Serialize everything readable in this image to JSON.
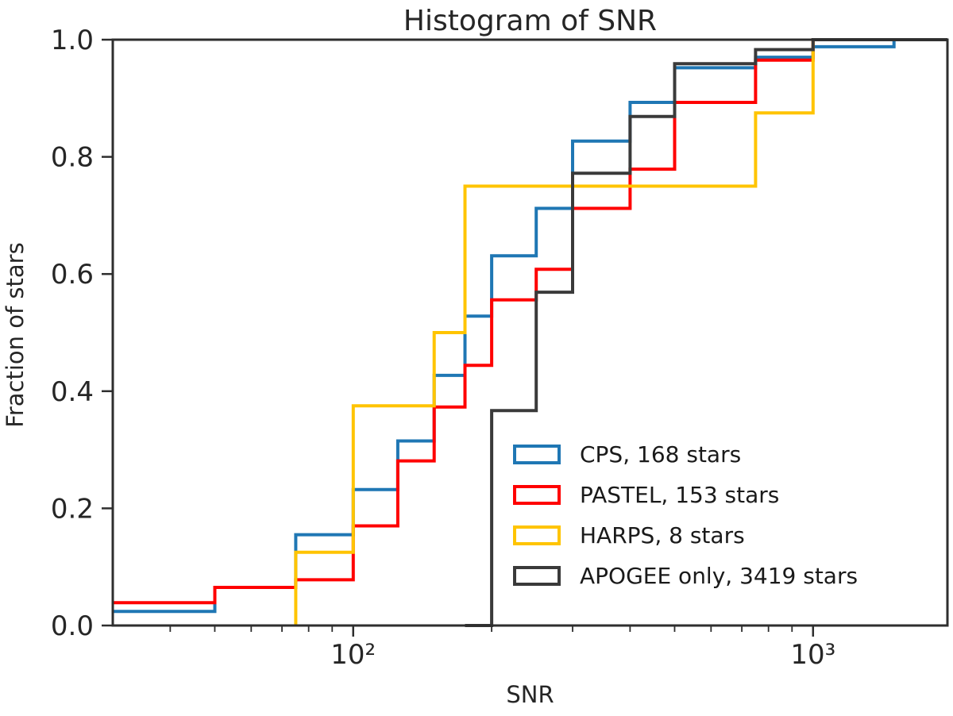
{
  "chart_data": {
    "type": "step_cumulative_histogram",
    "title": "Histogram of SNR",
    "xlabel": "SNR",
    "ylabel": "Fraction of stars",
    "xscale": "log",
    "xlim": [
      30,
      1960
    ],
    "ylim": [
      0.0,
      1.0
    ],
    "grid": false,
    "legend_position": "lower right, no frame",
    "x_major_ticks": [
      {
        "value": 100,
        "label": "10²"
      },
      {
        "value": 1000,
        "label": "10³"
      }
    ],
    "x_minor_ticks": [
      40,
      50,
      60,
      70,
      80,
      90,
      200,
      300,
      400,
      500,
      600,
      700,
      800,
      900
    ],
    "y_ticks": [
      {
        "value": 0.0,
        "label": "0.0"
      },
      {
        "value": 0.2,
        "label": "0.2"
      },
      {
        "value": 0.4,
        "label": "0.4"
      },
      {
        "value": 0.6,
        "label": "0.6"
      },
      {
        "value": 0.8,
        "label": "0.8"
      },
      {
        "value": 1.0,
        "label": "1.0"
      }
    ],
    "series": [
      {
        "name": "CPS, 168 stars",
        "count": 168,
        "color": "#1f77b4",
        "start": [
          30,
          0.024
        ],
        "edges": [
          50,
          75,
          100,
          125,
          150,
          175,
          200,
          250,
          300,
          400,
          500,
          750,
          1000,
          1500
        ],
        "levels": [
          0.065,
          0.155,
          0.232,
          0.315,
          0.427,
          0.528,
          0.631,
          0.712,
          0.827,
          0.893,
          0.952,
          0.97,
          0.988,
          1.0
        ]
      },
      {
        "name": "PASTEL, 153 stars",
        "count": 153,
        "color": "#ff0000",
        "start": [
          30,
          0.039
        ],
        "edges": [
          50,
          75,
          100,
          125,
          150,
          175,
          200,
          250,
          300,
          400,
          500,
          750,
          1000
        ],
        "levels": [
          0.065,
          0.078,
          0.17,
          0.281,
          0.373,
          0.444,
          0.556,
          0.608,
          0.712,
          0.779,
          0.893,
          0.965,
          1.0
        ]
      },
      {
        "name": "HARPS, 8 stars",
        "count": 8,
        "color": "#ffc400",
        "start": [
          75,
          0.0
        ],
        "edges": [
          75,
          100,
          150,
          175,
          750,
          1000
        ],
        "levels": [
          0.125,
          0.375,
          0.5,
          0.75,
          0.875,
          1.0
        ]
      },
      {
        "name": "APOGEE only, 3419 stars",
        "count": 3419,
        "color": "#3a3a3a",
        "start": [
          175,
          0.0
        ],
        "edges": [
          200,
          250,
          300,
          400,
          500,
          750,
          1000
        ],
        "levels": [
          0.367,
          0.569,
          0.772,
          0.869,
          0.959,
          0.983,
          1.0
        ]
      }
    ]
  }
}
